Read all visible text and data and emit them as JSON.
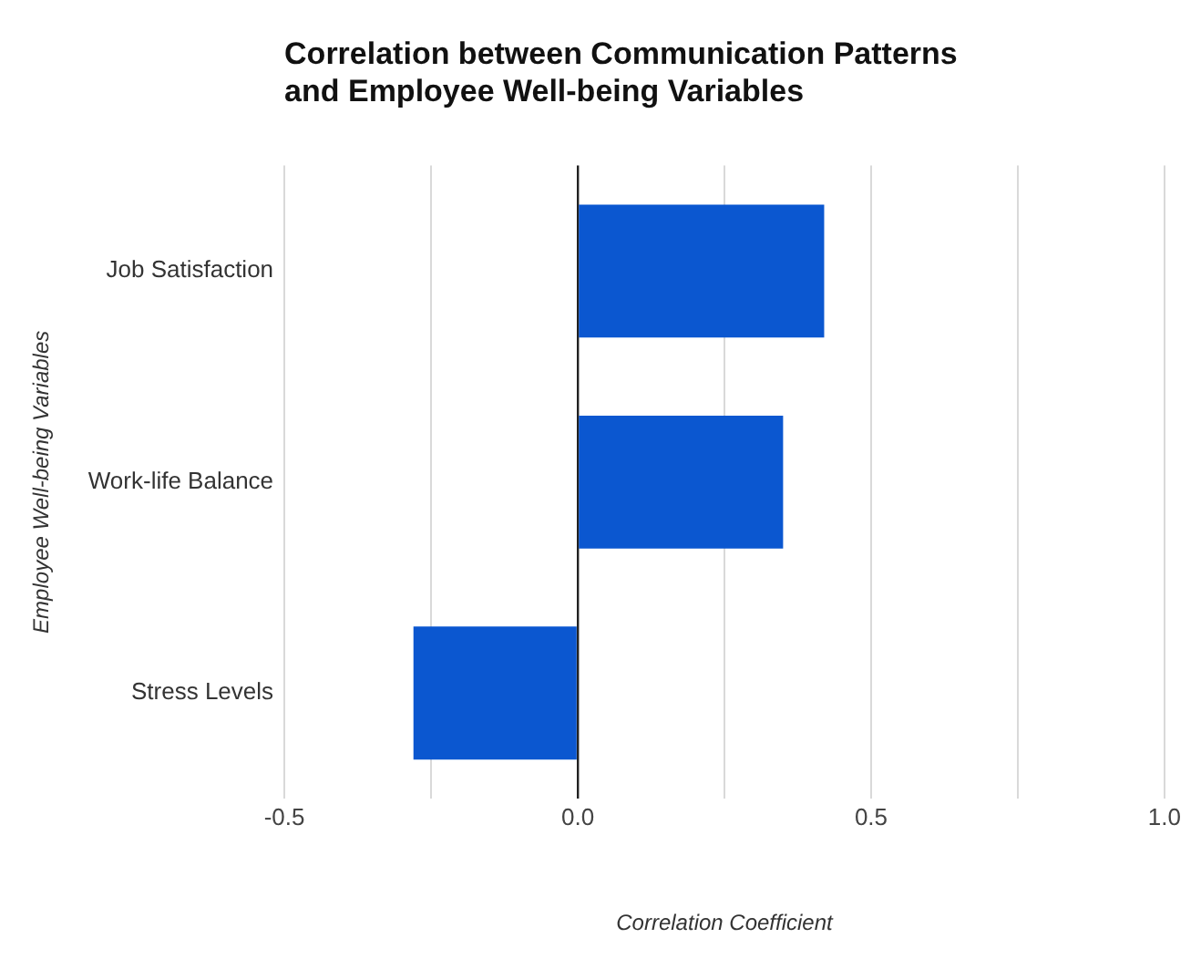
{
  "chart_data": {
    "type": "bar",
    "orientation": "horizontal",
    "title": "Correlation between Communication Patterns\nand Employee Well-being Variables",
    "xlabel": "Correlation Coefficient",
    "ylabel": "Employee Well-being Variables",
    "categories": [
      "Job Satisfaction",
      "Work-life Balance",
      "Stress Levels"
    ],
    "values": [
      0.42,
      0.35,
      -0.28
    ],
    "color": "#0b57d0",
    "xlim": [
      -0.5,
      1.0
    ],
    "xticks": [
      -0.5,
      {
        "value": -0.25,
        "label": null
      },
      {
        "value": 0,
        "label": "0.0"
      },
      {
        "value": 0.25,
        "label": null
      },
      0.5,
      {
        "value": 0.75,
        "label": null
      },
      {
        "value": 1.0,
        "label": "1.0"
      }
    ],
    "grid": "x",
    "legend": false
  }
}
